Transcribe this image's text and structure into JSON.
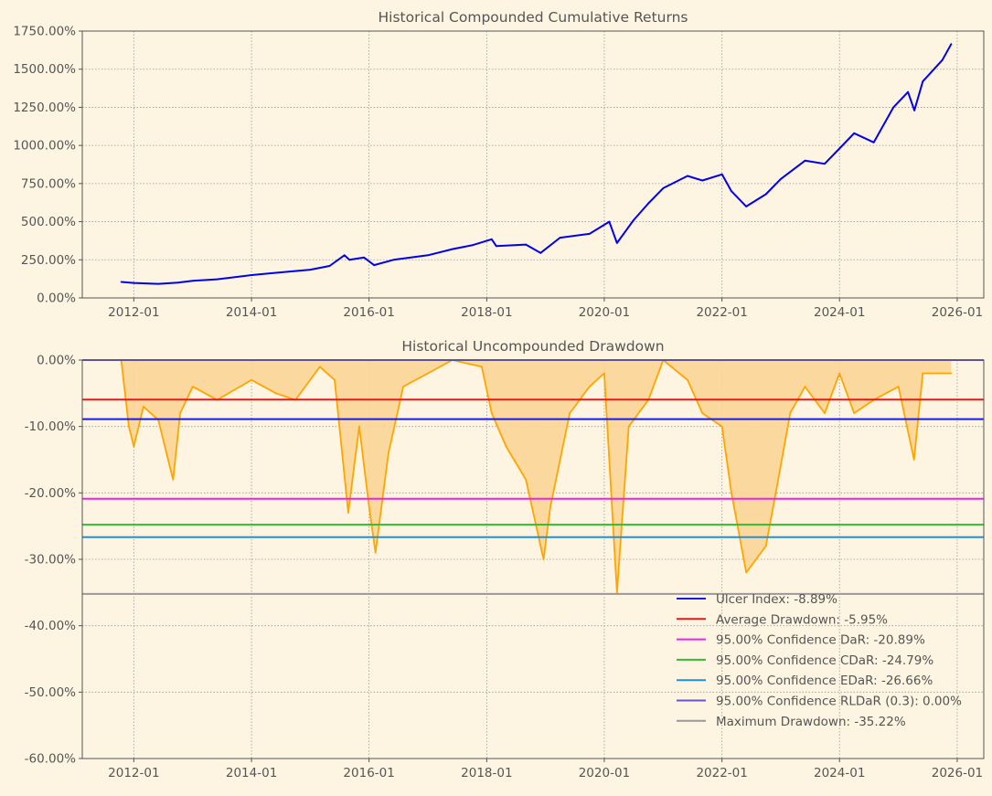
{
  "colors": {
    "background": "#fdf5e1",
    "axis_text": "#555555",
    "returns_line": "#0000ee",
    "drawdown_line": "#ffa500",
    "drawdown_fill": "#fbd596",
    "grid": "#999999"
  },
  "chart_data": [
    {
      "type": "line",
      "title": "Historical Compounded Cumulative Returns",
      "xlabel": "",
      "ylabel": "",
      "x_tick_labels": [
        "2012-01",
        "2014-01",
        "2016-01",
        "2018-01",
        "2020-01",
        "2022-01",
        "2024-01",
        "2026-01"
      ],
      "x_range": [
        "2011-02-15",
        "2026-06-15"
      ],
      "y_tick_labels": [
        "0.00%",
        "250.00%",
        "500.00%",
        "750.00%",
        "1000.00%",
        "1250.00%",
        "1500.00%",
        "1750.00%"
      ],
      "y_ticks": [
        0,
        250,
        500,
        750,
        1000,
        1250,
        1500,
        1750
      ],
      "ylim": [
        0,
        1750
      ],
      "grid": true,
      "series": [
        {
          "color": "#0000ee",
          "points": [
            [
              "2011-10-15",
              105
            ],
            [
              "2012-01-01",
              98
            ],
            [
              "2012-06-01",
              92
            ],
            [
              "2012-10-01",
              100
            ],
            [
              "2013-01-01",
              112
            ],
            [
              "2013-06-01",
              122
            ],
            [
              "2014-01-01",
              150
            ],
            [
              "2014-06-01",
              165
            ],
            [
              "2015-01-01",
              185
            ],
            [
              "2015-05-01",
              210
            ],
            [
              "2015-08-01",
              280
            ],
            [
              "2015-09-01",
              250
            ],
            [
              "2015-12-01",
              265
            ],
            [
              "2016-02-01",
              215
            ],
            [
              "2016-06-01",
              250
            ],
            [
              "2017-01-01",
              280
            ],
            [
              "2017-06-01",
              320
            ],
            [
              "2017-10-01",
              345
            ],
            [
              "2018-02-01",
              385
            ],
            [
              "2018-03-01",
              340
            ],
            [
              "2018-09-01",
              350
            ],
            [
              "2018-12-01",
              295
            ],
            [
              "2019-04-01",
              395
            ],
            [
              "2019-10-01",
              420
            ],
            [
              "2020-02-01",
              500
            ],
            [
              "2020-03-20",
              360
            ],
            [
              "2020-07-01",
              510
            ],
            [
              "2020-10-01",
              620
            ],
            [
              "2021-01-01",
              720
            ],
            [
              "2021-06-01",
              800
            ],
            [
              "2021-09-01",
              770
            ],
            [
              "2022-01-01",
              810
            ],
            [
              "2022-03-01",
              700
            ],
            [
              "2022-06-01",
              600
            ],
            [
              "2022-10-01",
              680
            ],
            [
              "2023-01-01",
              780
            ],
            [
              "2023-06-01",
              900
            ],
            [
              "2023-10-01",
              880
            ],
            [
              "2024-01-01",
              980
            ],
            [
              "2024-04-01",
              1080
            ],
            [
              "2024-08-01",
              1020
            ],
            [
              "2024-12-01",
              1250
            ],
            [
              "2025-03-01",
              1350
            ],
            [
              "2025-04-10",
              1230
            ],
            [
              "2025-06-01",
              1420
            ],
            [
              "2025-10-01",
              1560
            ],
            [
              "2025-11-25",
              1665
            ]
          ]
        }
      ]
    },
    {
      "type": "area",
      "title": "Historical Uncompounded Drawdown",
      "xlabel": "",
      "ylabel": "",
      "x_tick_labels": [
        "2012-01",
        "2014-01",
        "2016-01",
        "2018-01",
        "2020-01",
        "2022-01",
        "2024-01",
        "2026-01"
      ],
      "x_range": [
        "2011-02-15",
        "2026-06-15"
      ],
      "y_tick_labels": [
        "0.00%",
        "-10.00%",
        "-20.00%",
        "-30.00%",
        "-40.00%",
        "-50.00%",
        "-60.00%"
      ],
      "y_ticks": [
        0,
        -10,
        -20,
        -30,
        -40,
        -50,
        -60
      ],
      "ylim": [
        -60,
        0
      ],
      "grid": true,
      "legend_position": "bottom-right",
      "series": [
        {
          "color": "#ffa500",
          "fill": "#fbd596",
          "points": [
            [
              "2011-10-15",
              0
            ],
            [
              "2011-12-01",
              -10
            ],
            [
              "2012-01-01",
              -13
            ],
            [
              "2012-03-01",
              -7
            ],
            [
              "2012-06-01",
              -9
            ],
            [
              "2012-09-01",
              -18
            ],
            [
              "2012-10-15",
              -8
            ],
            [
              "2013-01-01",
              -4
            ],
            [
              "2013-06-01",
              -6
            ],
            [
              "2014-01-01",
              -3
            ],
            [
              "2014-06-01",
              -5
            ],
            [
              "2014-10-01",
              -6
            ],
            [
              "2015-03-01",
              -1
            ],
            [
              "2015-06-01",
              -3
            ],
            [
              "2015-08-25",
              -23
            ],
            [
              "2015-11-01",
              -10
            ],
            [
              "2016-01-01",
              -22
            ],
            [
              "2016-02-10",
              -29
            ],
            [
              "2016-05-01",
              -14
            ],
            [
              "2016-08-01",
              -4
            ],
            [
              "2017-01-01",
              -2
            ],
            [
              "2017-06-01",
              0
            ],
            [
              "2017-12-01",
              -1
            ],
            [
              "2018-02-01",
              -8
            ],
            [
              "2018-05-01",
              -13
            ],
            [
              "2018-09-01",
              -18
            ],
            [
              "2018-12-20",
              -30
            ],
            [
              "2019-02-01",
              -22
            ],
            [
              "2019-06-01",
              -8
            ],
            [
              "2019-10-01",
              -4
            ],
            [
              "2020-01-01",
              -2
            ],
            [
              "2020-03-20",
              -35
            ],
            [
              "2020-06-01",
              -10
            ],
            [
              "2020-10-01",
              -6
            ],
            [
              "2021-01-01",
              0
            ],
            [
              "2021-06-01",
              -3
            ],
            [
              "2021-09-01",
              -8
            ],
            [
              "2022-01-01",
              -10
            ],
            [
              "2022-03-01",
              -20
            ],
            [
              "2022-06-01",
              -32
            ],
            [
              "2022-10-01",
              -28
            ],
            [
              "2022-12-01",
              -20
            ],
            [
              "2023-03-01",
              -8
            ],
            [
              "2023-06-01",
              -4
            ],
            [
              "2023-10-01",
              -8
            ],
            [
              "2024-01-01",
              -2
            ],
            [
              "2024-04-01",
              -8
            ],
            [
              "2024-08-01",
              -6
            ],
            [
              "2025-01-01",
              -4
            ],
            [
              "2025-04-08",
              -15
            ],
            [
              "2025-06-01",
              -2
            ],
            [
              "2025-11-25",
              -2
            ]
          ]
        }
      ],
      "reference_lines": [
        {
          "label": "Ulcer Index: -8.89%",
          "value": -8.89,
          "color": "#1a1ae6"
        },
        {
          "label": "Average Drawdown: -5.95%",
          "value": -5.95,
          "color": "#e61a1a"
        },
        {
          "label": "95.00% Confidence DaR: -20.89%",
          "value": -20.89,
          "color": "#ee22ee"
        },
        {
          "label": "95.00% Confidence CDaR: -24.79%",
          "value": -24.79,
          "color": "#33bb33"
        },
        {
          "label": "95.00% Confidence EDaR: -26.66%",
          "value": -26.66,
          "color": "#1f8fdf"
        },
        {
          "label": "95.00% Confidence RLDaR (0.3): 0.00%",
          "value": 0.0,
          "color": "#6655cc"
        },
        {
          "label": "Maximum Drawdown: -35.22%",
          "value": -35.22,
          "color": "#999999"
        }
      ]
    }
  ]
}
